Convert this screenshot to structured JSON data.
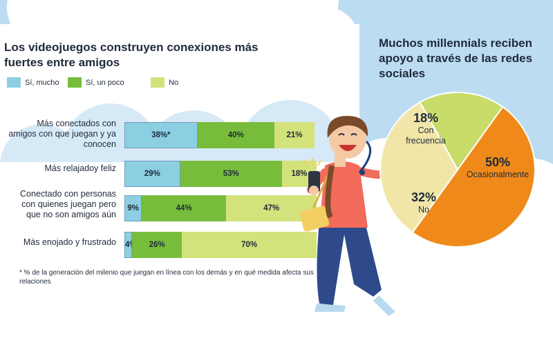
{
  "left_title": "Los videojuegos construyen conexiones más fuertes entre amigos",
  "right_title": "Muchos millennials reciben apoyo a través de las redes sociales",
  "footnote": "* % de la generación del milenio que juegan en línea con los demás y en qué medida afecta sus relaciones",
  "colors": {
    "si_mucho": "#8ccfe3",
    "si_un_poco": "#77bd3b",
    "no": "#d3e27a",
    "pie_frecuencia": "#c8dc6a",
    "pie_ocasionalmente": "#ef8a1a",
    "pie_no": "#f1e6a8",
    "sky": "#bcdcf2"
  },
  "chart_data": [
    {
      "type": "bar",
      "stacked": true,
      "orientation": "horizontal",
      "title": "Los videojuegos construyen conexiones más fuertes entre amigos",
      "categories": [
        "Más conectados con amigos con que juegan y ya conocen",
        "Más relajadoy feliz",
        "Conectado con personas con quienes juegan pero que no son amigos aún",
        "Más enojado y frustrado"
      ],
      "series": [
        {
          "name": "Sí, mucho",
          "values": [
            38,
            29,
            9,
            4
          ],
          "labels": [
            "38%*",
            "29%",
            "9%",
            "4%"
          ]
        },
        {
          "name": "Sí, un poco",
          "values": [
            40,
            53,
            44,
            26
          ],
          "labels": [
            "40%",
            "53%",
            "44%",
            "26%"
          ]
        },
        {
          "name": "No",
          "values": [
            21,
            18,
            47,
            70
          ],
          "labels": [
            "21%",
            "18%",
            "47%",
            "70%"
          ]
        }
      ],
      "legend_position": "top-left",
      "grid": false
    },
    {
      "type": "pie",
      "title": "Muchos millennials reciben apoyo a través de las redes sociales",
      "slices": [
        {
          "label": "Con frecuencia",
          "value": 18,
          "value_label": "18%"
        },
        {
          "label": "Ocasionalmente",
          "value": 50,
          "value_label": "50%"
        },
        {
          "label": "No",
          "value": 32,
          "value_label": "32%"
        }
      ]
    }
  ]
}
